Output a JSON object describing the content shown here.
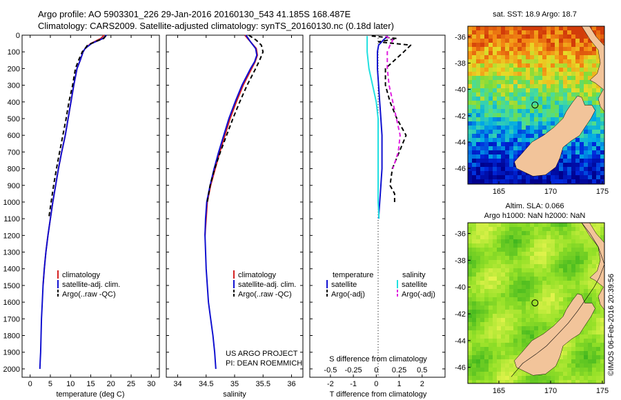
{
  "header": {
    "line1": "Argo profile: AO 5903301_226 29-Jan-2016 20160130_543 41.185S 168.487E",
    "line2": "Climatology: CARS2009. Satellite-adjusted climatology: synTS_20160130.nc (0.18d later)"
  },
  "watermark": "©IMOS 06-Feb-2016 20:39:56",
  "colors": {
    "climatology": "#d42020",
    "satellite": "#1010d0",
    "argo": "#000000",
    "sal_satellite": "#20e0e0",
    "sal_argo": "#e020e0",
    "land": "#f2c49a"
  },
  "panel_temperature": {
    "xlabel": "temperature (deg C)",
    "xticks": [
      "0",
      "5",
      "10",
      "15",
      "20",
      "25",
      "30"
    ],
    "yticks": [
      "0",
      "100",
      "200",
      "300",
      "400",
      "500",
      "600",
      "700",
      "800",
      "900",
      "1000",
      "1100",
      "1200",
      "1300",
      "1400",
      "1500",
      "1600",
      "1700",
      "1800",
      "1900",
      "2000"
    ],
    "legend": [
      "climatology",
      "satellite-adj. clim.",
      "Argo(..raw -QC)"
    ]
  },
  "panel_salinity": {
    "xlabel": "salinity",
    "xticks": [
      "34",
      "34.5",
      "35",
      "35.5",
      "36"
    ],
    "legend": [
      "climatology",
      "satellite-adj. clim.",
      "Argo(..raw -QC)"
    ],
    "project_line1": "US ARGO PROJECT",
    "project_line2": "PI: DEAN ROEMMICH"
  },
  "panel_difference": {
    "t_xlabel": "T difference from climatology",
    "s_xlabel": "S difference from climatology",
    "t_xticks": [
      "-2",
      "-1",
      "0",
      "1",
      "2"
    ],
    "s_xticks": [
      "-0.5",
      "-0.25",
      "0",
      "0.25",
      "0.5"
    ],
    "legend_temp_title": "temperature",
    "legend_sal_title": "salinity",
    "legend_temp": [
      "satellite",
      "Argo(-adj)"
    ],
    "legend_sal": [
      "satellite",
      "Argo(-adj)"
    ]
  },
  "map_sst": {
    "title": "sat. SST: 18.9 Argo: 18.7",
    "xticks": [
      "165",
      "170",
      "175"
    ],
    "yticks": [
      "-36",
      "-38",
      "-40",
      "-42",
      "-44",
      "-46"
    ]
  },
  "map_sla": {
    "title1": "Altim. SLA: 0.066",
    "title2": "Argo h1000: NaN h2000: NaN",
    "xticks": [
      "165",
      "170",
      "175"
    ],
    "yticks": [
      "-36",
      "-38",
      "-40",
      "-42",
      "-44",
      "-46"
    ]
  },
  "chart_data": [
    {
      "type": "line",
      "title": "",
      "xlabel": "temperature (deg C)",
      "ylabel": "",
      "xlim": [
        -2,
        32
      ],
      "ylim": [
        2050,
        0
      ],
      "series": [
        {
          "name": "climatology",
          "color": "#d42020",
          "dash": false,
          "x": [
            18.3,
            17.5,
            15.0,
            13.6,
            13.1,
            12.4,
            11.6,
            10.8,
            10.1,
            9.4,
            8.7,
            7.8,
            7.0,
            6.3,
            5.6,
            5.0,
            4.4,
            3.9,
            3.5,
            3.2
          ],
          "y": [
            0,
            20,
            50,
            80,
            100,
            150,
            200,
            300,
            400,
            500,
            600,
            700,
            800,
            900,
            1000,
            1100,
            1200,
            1300,
            1400,
            1500
          ]
        },
        {
          "name": "satellite-adj. clim.",
          "color": "#1010d0",
          "dash": false,
          "x": [
            18.9,
            18.0,
            15.2,
            13.6,
            13.1,
            12.4,
            11.6,
            10.8,
            10.1,
            9.4,
            8.7,
            7.8,
            7.0,
            6.3,
            5.6,
            5.0,
            4.4,
            3.9,
            3.5,
            3.2,
            3.0,
            2.8,
            2.7,
            2.6,
            2.5,
            2.4
          ],
          "y": [
            0,
            20,
            50,
            80,
            100,
            150,
            200,
            300,
            400,
            500,
            600,
            700,
            800,
            900,
            1000,
            1100,
            1200,
            1300,
            1400,
            1500,
            1600,
            1700,
            1800,
            1900,
            1950,
            2000
          ]
        },
        {
          "name": "Argo(..raw -QC)",
          "color": "#000000",
          "dash": true,
          "x": [
            18.7,
            18.2,
            16.0,
            14.2,
            13.6,
            12.9,
            12.0,
            11.2,
            10.5,
            9.6,
            8.9,
            8.1,
            7.3,
            6.5,
            5.8,
            5.2,
            4.6
          ],
          "y": [
            5,
            20,
            40,
            60,
            80,
            100,
            150,
            200,
            300,
            400,
            500,
            600,
            700,
            800,
            900,
            1000,
            1100
          ]
        }
      ]
    },
    {
      "type": "line",
      "title": "",
      "xlabel": "salinity",
      "ylabel": "",
      "xlim": [
        33.8,
        36.2
      ],
      "ylim": [
        2050,
        0
      ],
      "series": [
        {
          "name": "climatology",
          "color": "#d42020",
          "dash": false,
          "x": [
            35.18,
            35.28,
            35.38,
            35.4,
            35.36,
            35.3,
            35.15,
            35.03,
            34.92,
            34.83,
            34.74,
            34.66,
            34.58,
            34.52,
            34.5,
            34.49,
            34.48
          ],
          "y": [
            0,
            40,
            80,
            120,
            160,
            200,
            300,
            400,
            500,
            600,
            700,
            800,
            900,
            1000,
            1100,
            1150,
            1200
          ]
        },
        {
          "name": "satellite-adj. clim.",
          "color": "#1010d0",
          "dash": false,
          "x": [
            35.2,
            35.28,
            35.37,
            35.39,
            35.35,
            35.28,
            35.13,
            35.01,
            34.9,
            34.81,
            34.72,
            34.64,
            34.57,
            34.51,
            34.49,
            34.48,
            34.5,
            34.54,
            34.58,
            34.62,
            34.65,
            34.67
          ],
          "y": [
            0,
            40,
            80,
            120,
            160,
            200,
            300,
            400,
            500,
            600,
            700,
            800,
            900,
            1000,
            1100,
            1200,
            1400,
            1600,
            1700,
            1800,
            1900,
            2000
          ]
        },
        {
          "name": "Argo(..raw -QC)",
          "color": "#000000",
          "dash": true,
          "x": [
            35.25,
            35.38,
            35.47,
            35.5,
            35.44,
            35.37,
            35.22,
            35.09,
            34.97,
            34.86,
            34.75,
            34.65,
            34.57,
            34.52
          ],
          "y": [
            0,
            30,
            60,
            100,
            150,
            200,
            300,
            400,
            500,
            600,
            700,
            800,
            900,
            1000
          ]
        }
      ]
    },
    {
      "type": "line",
      "title": "",
      "xlabel": "T difference from climatology",
      "x2label": "S difference from climatology",
      "ylabel": "",
      "xlim": [
        -2.9,
        3.0
      ],
      "ylim": [
        2050,
        0
      ],
      "series": [
        {
          "name": "temperature satellite",
          "color": "#1010d0",
          "dash": false,
          "x": [
            0.5,
            0.3,
            0.1,
            0.05,
            0.05,
            0.1,
            0.15,
            0.2,
            0.25,
            0.25,
            0.25,
            0.2,
            0.15,
            0.1
          ],
          "y": [
            5,
            30,
            60,
            100,
            200,
            300,
            400,
            500,
            600,
            700,
            800,
            900,
            1000,
            1100
          ]
        },
        {
          "name": "temperature Argo(-adj)",
          "color": "#000000",
          "dash": true,
          "x": [
            -0.2,
            0.9,
            0.1,
            1.5,
            1.2,
            0.8,
            0.4,
            0.4,
            0.6,
            0.9,
            1.3,
            1.0,
            0.7,
            0.6,
            0.8,
            0.8
          ],
          "y": [
            5,
            20,
            40,
            60,
            100,
            150,
            200,
            300,
            400,
            500,
            600,
            700,
            800,
            900,
            950,
            1000
          ]
        },
        {
          "name": "salinity satellite",
          "color": "#20e0e0",
          "dash": false,
          "x": [
            -0.1,
            -0.1,
            -0.1,
            -0.08,
            -0.04,
            0.0,
            0.02,
            0.02,
            0.02,
            0.02,
            0.02,
            0.02,
            0.03
          ],
          "y": [
            5,
            50,
            100,
            200,
            300,
            400,
            500,
            600,
            700,
            800,
            900,
            1000,
            1100
          ]
        },
        {
          "name": "salinity Argo(-adj)",
          "color": "#e020e0",
          "dash": true,
          "x": [
            0.1,
            0.18,
            0.15,
            0.12,
            0.12,
            0.14,
            0.18,
            0.22,
            0.26,
            0.24,
            0.18
          ],
          "y": [
            5,
            30,
            60,
            100,
            200,
            300,
            400,
            500,
            600,
            700,
            800
          ]
        }
      ]
    }
  ]
}
